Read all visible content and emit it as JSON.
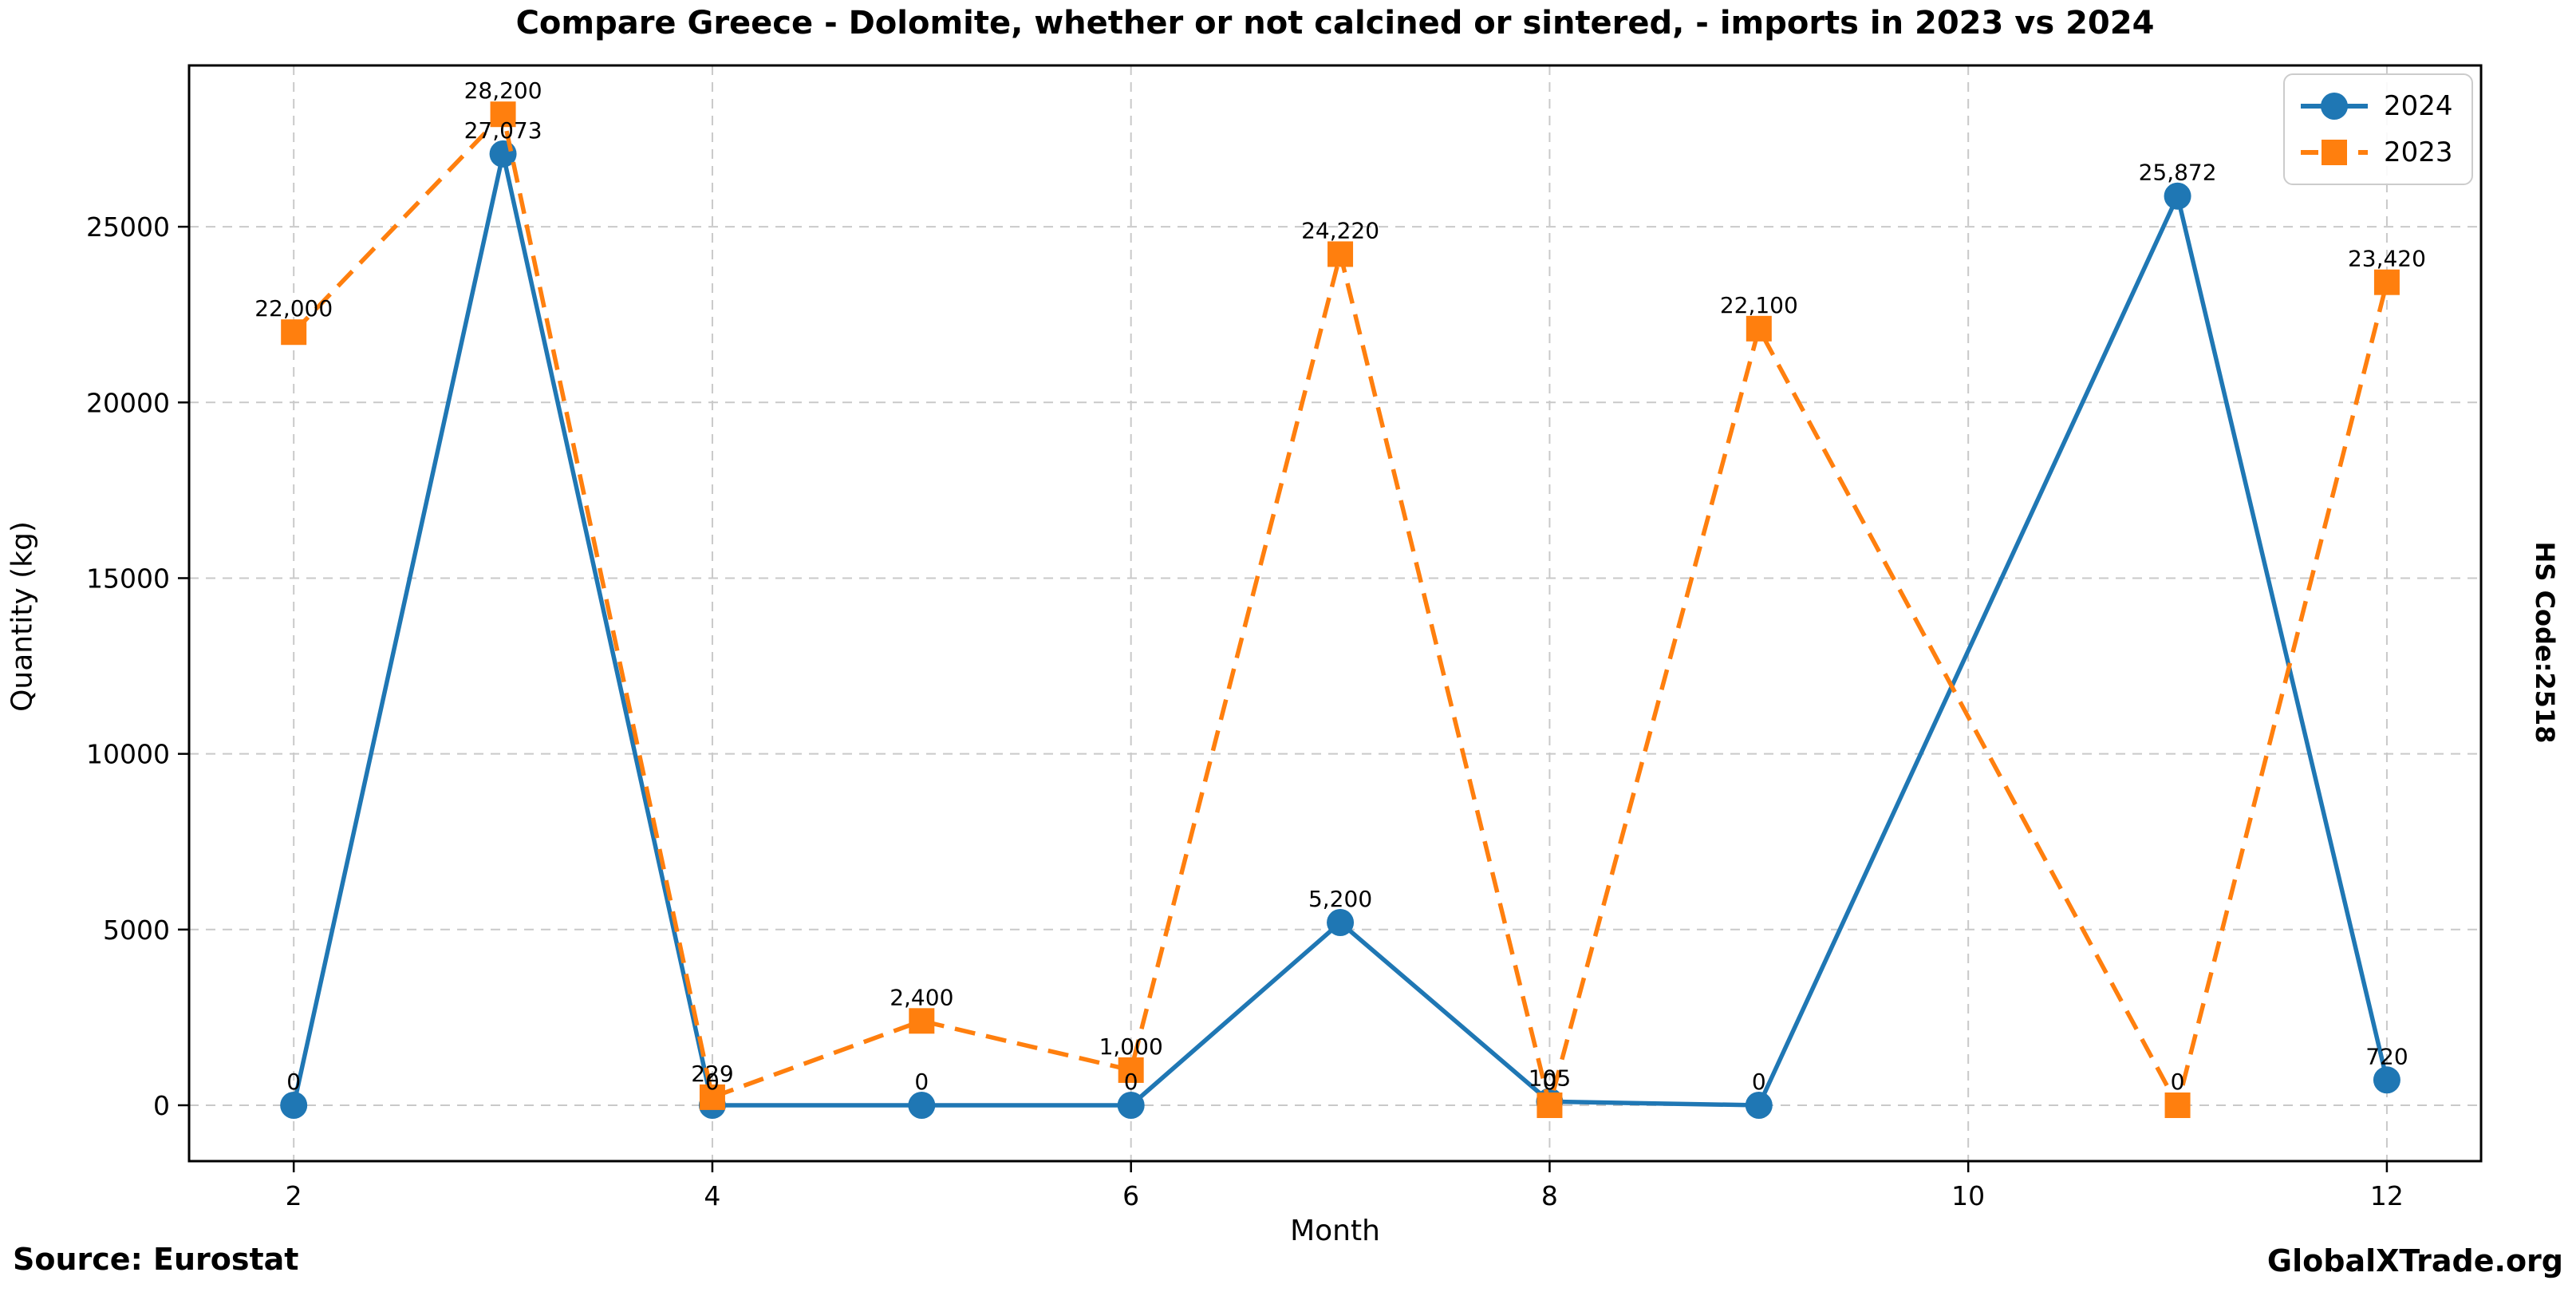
{
  "title": "Compare Greece - Dolomite, whether or not calcined or sintered, - imports in 2023 vs 2024",
  "side_label": "HS Code:2518",
  "footer": {
    "source": "Source: Eurostat",
    "brand": "GlobalXTrade.org"
  },
  "chart_data": {
    "type": "line",
    "title": "Compare Greece - Dolomite, whether or not calcined or sintered, - imports in 2023 vs 2024",
    "xlabel": "Month",
    "ylabel": "Quantity (kg)",
    "grid": true,
    "legend_position": "upper right",
    "xlim": [
      1.5,
      12.45
    ],
    "ylim": [
      -1590,
      29590
    ],
    "x_ticks": [
      2,
      4,
      6,
      8,
      10,
      12
    ],
    "y_ticks": [
      0,
      5000,
      10000,
      15000,
      20000,
      25000
    ],
    "axis_color": "#000000",
    "grid_color": "#c9c9c9",
    "series": [
      {
        "name": "2024",
        "color": "#1f77b4",
        "style": "solid",
        "marker": "circle",
        "x": [
          2,
          3,
          4,
          5,
          6,
          7,
          8,
          9,
          11,
          12
        ],
        "y": [
          0,
          27073,
          0,
          0,
          0,
          5200,
          105,
          0,
          25872,
          720
        ],
        "labels": [
          "0",
          "27,073",
          "0",
          "0",
          "0",
          "5,200",
          "105",
          "0",
          "25,872",
          "720"
        ]
      },
      {
        "name": "2023",
        "color": "#ff7f0e",
        "style": "dashed",
        "marker": "square",
        "x": [
          2,
          3,
          4,
          5,
          6,
          7,
          8,
          9,
          11,
          12
        ],
        "y": [
          22000,
          28200,
          229,
          2400,
          1000,
          24220,
          0,
          22100,
          0,
          23420
        ],
        "labels": [
          "22,000",
          "28,200",
          "229",
          "2,400",
          "1,000",
          "24,220",
          "0",
          "22,100",
          "0",
          "23,420"
        ]
      }
    ]
  }
}
